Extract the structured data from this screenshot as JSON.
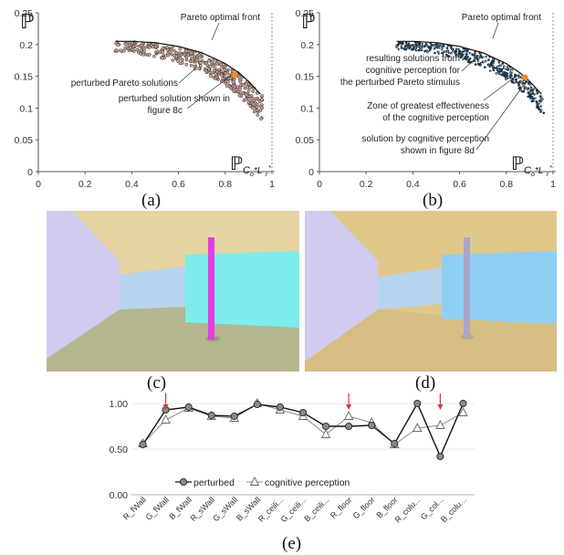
{
  "figure": {
    "captions": [
      "(a)",
      "(b)",
      "(c)",
      "(d)",
      "(e)"
    ]
  },
  "panel_a": {
    "y_symbol": "ℙ",
    "x_symbol": "ℙ",
    "x_subscript": "C",
    "x_sub_o": "o",
    "x_mid": "*L",
    "x_sub_r": "r",
    "x_star": "*",
    "annotations": {
      "front": "Pareto optimal front",
      "perturbed": "perturbed Pareto solutions",
      "shown_line1": "perturbed solution shown in",
      "shown_line2": "figure 8c"
    }
  },
  "panel_b": {
    "y_symbol": "ℙ",
    "x_symbol": "ℙ",
    "x_subscript": "C",
    "x_sub_o": "o",
    "x_mid": "*L",
    "x_sub_r": "r",
    "x_star": "*",
    "annotations": {
      "front": "Pareto optimal front",
      "result_line1": "resulting solutions from",
      "result_line2": "cognitive perception for",
      "result_line3": "the perturbed Pareto stimulus",
      "zone_line1": "Zone of greatest effectiveness",
      "zone_line2": "of the cognitive perception",
      "sol_line1": "solution by cognitive perception",
      "sol_line2": "shown in figure 8d"
    }
  },
  "colors": {
    "orange": "#f08a24",
    "axis": "#555555",
    "wall_purple": "#d0ccf0",
    "ceiling_c": "#e6d4a2",
    "floor_c": "#b5b690",
    "cyan_wall": "#7deceb",
    "column_c": "#e43de3",
    "ceiling_d": "#e0c88a",
    "floor_d": "#d6be82",
    "blue_wall_d": "#8fd0f2",
    "column_d": "#a9a6c9",
    "corridor": "#b8d4ee"
  },
  "chart_data": [
    {
      "type": "scatter",
      "panel": "a",
      "xlim": [
        0,
        1
      ],
      "ylim": [
        0,
        0.25
      ],
      "xticks": [
        "0",
        "0.2",
        "0.4",
        "0.6",
        "0.8",
        "1"
      ],
      "yticks": [
        "0",
        "0.05",
        "0.1",
        "0.15",
        "0.2",
        "0.25"
      ],
      "series": [
        {
          "name": "Pareto optimal front",
          "kind": "line",
          "x": [
            0.33,
            0.4,
            0.5,
            0.6,
            0.7,
            0.8,
            0.86,
            0.9,
            0.93,
            0.95
          ],
          "y": [
            0.205,
            0.205,
            0.203,
            0.197,
            0.187,
            0.17,
            0.155,
            0.142,
            0.13,
            0.122
          ]
        },
        {
          "name": "perturbed Pareto solutions",
          "kind": "points",
          "x_range": [
            0.33,
            0.96
          ]
        },
        {
          "name": "perturbed solution shown in figure 8c",
          "kind": "highlight",
          "x": [
            0.84
          ],
          "y": [
            0.152
          ]
        }
      ]
    },
    {
      "type": "scatter",
      "panel": "b",
      "xlim": [
        0,
        1
      ],
      "ylim": [
        0,
        0.25
      ],
      "xticks": [
        "0",
        "0.2",
        "0.4",
        "0.6",
        "0.8",
        "1"
      ],
      "yticks": [
        "0",
        "0.05",
        "0.1",
        "0.15",
        "0.2",
        "0.25"
      ],
      "series": [
        {
          "name": "Pareto optimal front",
          "kind": "line",
          "x": [
            0.33,
            0.4,
            0.5,
            0.6,
            0.7,
            0.8,
            0.86,
            0.9,
            0.93,
            0.95
          ],
          "y": [
            0.205,
            0.205,
            0.203,
            0.197,
            0.187,
            0.17,
            0.155,
            0.142,
            0.13,
            0.122
          ]
        },
        {
          "name": "resulting solutions from cognitive perception",
          "kind": "points",
          "x_range": [
            0.33,
            0.96
          ]
        },
        {
          "name": "solution by cognitive perception shown in figure 8d",
          "kind": "highlight",
          "x": [
            0.88
          ],
          "y": [
            0.148
          ]
        }
      ]
    },
    {
      "type": "line",
      "panel": "e",
      "categories": [
        "R_fWall",
        "G_fWall",
        "B_fWall",
        "R_sWall",
        "G_sWall",
        "B_sWall",
        "R_ceili...",
        "G_ceili...",
        "B_ceili...",
        "R_floor",
        "G_floor",
        "B_floor",
        "R_colu...",
        "G_col...",
        "B_colu..."
      ],
      "ylim": [
        0,
        1
      ],
      "yticks": [
        "0.00",
        "0.50",
        "1.00"
      ],
      "series": [
        {
          "name": "perturbed",
          "marker": "circle",
          "values": [
            0.55,
            0.93,
            0.96,
            0.87,
            0.86,
            0.99,
            0.96,
            0.9,
            0.75,
            0.75,
            0.76,
            0.56,
            1.0,
            0.42,
            1.0
          ]
        },
        {
          "name": "cognitive perception",
          "marker": "triangle",
          "values": [
            0.56,
            0.82,
            0.95,
            0.86,
            0.84,
            1.0,
            0.93,
            0.86,
            0.66,
            0.86,
            0.79,
            0.55,
            0.73,
            0.76,
            0.9
          ]
        }
      ],
      "highlighted_categories": [
        "G_fWall",
        "R_floor",
        "G_col..."
      ],
      "legend": "bottom-left"
    }
  ]
}
